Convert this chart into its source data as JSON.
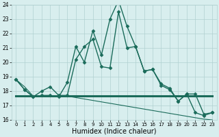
{
  "xlabel": "Humidex (Indice chaleur)",
  "x": [
    0,
    1,
    2,
    3,
    4,
    5,
    6,
    7,
    8,
    9,
    10,
    11,
    12,
    13,
    14,
    15,
    16,
    17,
    18,
    19,
    20,
    21,
    22,
    23
  ],
  "line1": [
    18.8,
    18.1,
    17.6,
    17.7,
    17.7,
    17.6,
    18.6,
    21.1,
    20.0,
    22.2,
    20.5,
    23.0,
    24.3,
    22.5,
    21.1,
    19.4,
    19.5,
    18.4,
    18.1,
    17.3,
    17.8,
    17.8,
    16.4,
    16.5
  ],
  "line2": [
    18.8,
    18.1,
    17.6,
    18.0,
    18.3,
    17.7,
    17.7,
    20.2,
    21.1,
    21.6,
    19.7,
    19.6,
    23.5,
    21.0,
    21.1,
    19.4,
    19.5,
    18.5,
    18.2,
    17.3,
    17.8,
    16.5,
    16.3,
    16.5
  ],
  "line3": [
    17.65,
    17.65,
    17.65,
    17.65,
    17.65,
    17.65,
    17.65,
    17.65,
    17.65,
    17.65,
    17.65,
    17.65,
    17.65,
    17.65,
    17.65,
    17.65,
    17.65,
    17.65,
    17.65,
    17.65,
    17.65,
    17.65,
    17.65,
    17.65
  ],
  "line4": [
    18.8,
    18.3,
    17.65,
    17.65,
    17.65,
    17.65,
    17.65,
    17.55,
    17.45,
    17.35,
    17.25,
    17.15,
    17.05,
    16.95,
    16.85,
    16.75,
    16.65,
    16.55,
    16.45,
    16.35,
    16.25,
    16.15,
    16.05,
    16.0
  ],
  "ylim": [
    16,
    24
  ],
  "xlim": [
    -0.5,
    23.5
  ],
  "yticks": [
    16,
    17,
    18,
    19,
    20,
    21,
    22,
    23,
    24
  ],
  "xticks": [
    0,
    1,
    2,
    3,
    4,
    5,
    6,
    7,
    8,
    9,
    10,
    11,
    12,
    13,
    14,
    15,
    16,
    17,
    18,
    19,
    20,
    21,
    22,
    23
  ],
  "line_color": "#1a6b5a",
  "bg_color": "#d8eeee",
  "grid_color": "#b0d0d0",
  "marker": "D",
  "marker_size": 2.5,
  "line1_lw": 1.0,
  "line2_lw": 1.0,
  "line3_lw": 2.2,
  "line4_lw": 0.8
}
